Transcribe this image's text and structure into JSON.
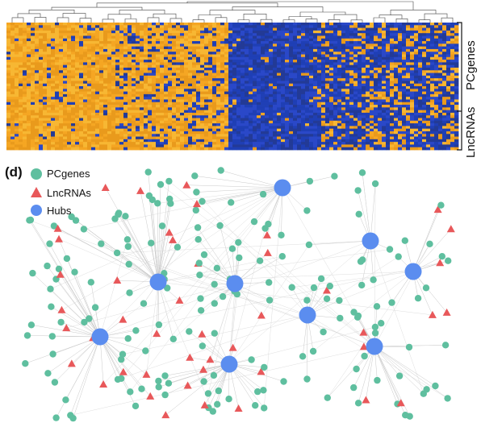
{
  "heatmap": {
    "row_groups": [
      "PCgenes",
      "LncRNAs"
    ],
    "colors": {
      "high": "#f5a623",
      "low": "#1f3fb5",
      "mid": "#3a4a8a"
    }
  },
  "network": {
    "panel_label": "(d)",
    "legend": [
      {
        "label": "PCgenes",
        "shape": "circle",
        "color": "#5fbf9f"
      },
      {
        "label": "LncRNAs",
        "shape": "triangle",
        "color": "#e8585a"
      },
      {
        "label": "Hubs",
        "shape": "circle",
        "color": "#5b8def"
      }
    ]
  }
}
